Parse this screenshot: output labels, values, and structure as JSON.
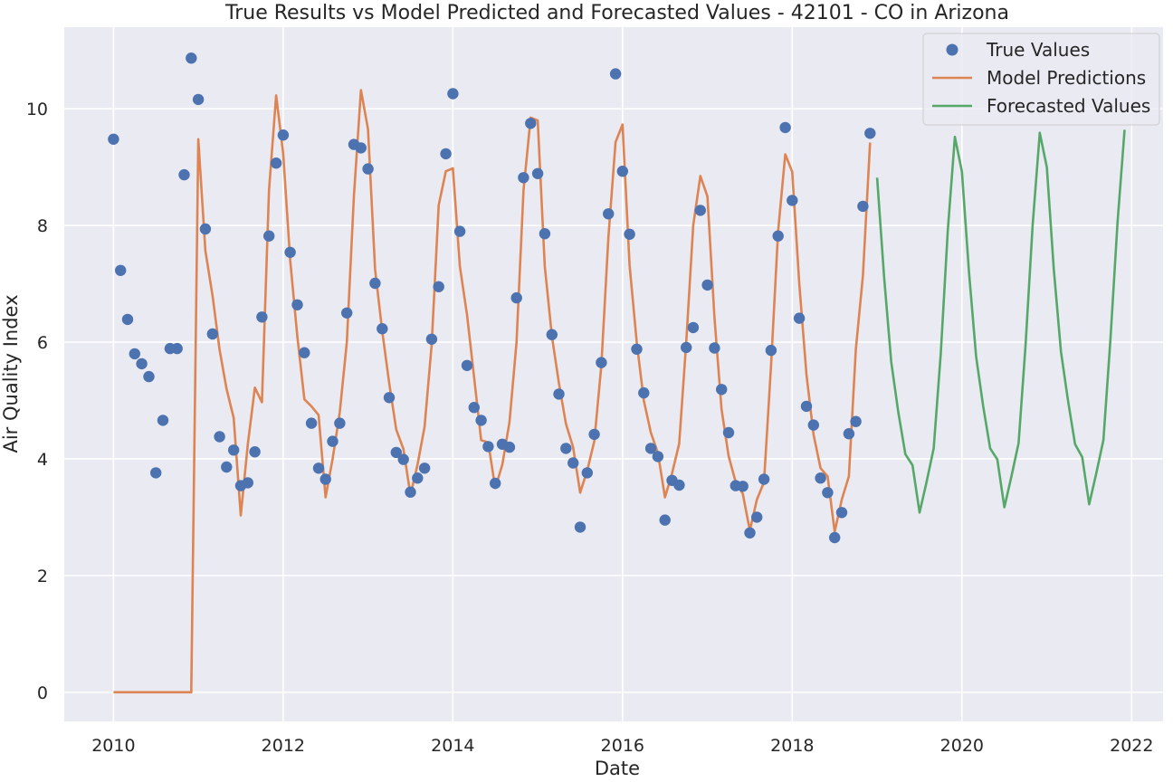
{
  "chart_data": {
    "type": "line",
    "title": "True Results vs Model Predicted and Forecasted Values - 42101 - CO in Arizona",
    "xlabel": "Date",
    "ylabel": "Air Quality Index",
    "xlim": [
      2009.42,
      2022.37
    ],
    "ylim": [
      -0.5,
      11.4
    ],
    "xticks": [
      2010,
      2012,
      2014,
      2016,
      2018,
      2020,
      2022
    ],
    "yticks": [
      0,
      2,
      4,
      6,
      8,
      10
    ],
    "grid": true,
    "legend_position": "top-right",
    "series": [
      {
        "name": "True Values",
        "kind": "scatter",
        "color": "#4c72b0",
        "x": [
          2010.0,
          2010.083,
          2010.167,
          2010.25,
          2010.333,
          2010.417,
          2010.5,
          2010.583,
          2010.667,
          2010.75,
          2010.833,
          2010.917,
          2011.0,
          2011.083,
          2011.167,
          2011.25,
          2011.333,
          2011.417,
          2011.5,
          2011.583,
          2011.667,
          2011.75,
          2011.833,
          2011.917,
          2012.0,
          2012.083,
          2012.167,
          2012.25,
          2012.333,
          2012.417,
          2012.5,
          2012.583,
          2012.667,
          2012.75,
          2012.833,
          2012.917,
          2013.0,
          2013.083,
          2013.167,
          2013.25,
          2013.333,
          2013.417,
          2013.5,
          2013.583,
          2013.667,
          2013.75,
          2013.833,
          2013.917,
          2014.0,
          2014.083,
          2014.167,
          2014.25,
          2014.333,
          2014.417,
          2014.5,
          2014.583,
          2014.667,
          2014.75,
          2014.833,
          2014.917,
          2015.0,
          2015.083,
          2015.167,
          2015.25,
          2015.333,
          2015.417,
          2015.5,
          2015.583,
          2015.667,
          2015.75,
          2015.833,
          2015.917,
          2016.0,
          2016.083,
          2016.167,
          2016.25,
          2016.333,
          2016.417,
          2016.5,
          2016.583,
          2016.667,
          2016.75,
          2016.833,
          2016.917,
          2017.0,
          2017.083,
          2017.167,
          2017.25,
          2017.333,
          2017.417,
          2017.5,
          2017.583,
          2017.667,
          2017.75,
          2017.833,
          2017.917,
          2018.0,
          2018.083,
          2018.167,
          2018.25,
          2018.333,
          2018.417,
          2018.5,
          2018.583,
          2018.667,
          2018.75,
          2018.833,
          2018.917
        ],
        "y": [
          9.48,
          7.23,
          6.39,
          5.8,
          5.63,
          5.41,
          3.76,
          4.66,
          5.89,
          5.89,
          8.87,
          10.87,
          10.16,
          7.94,
          6.14,
          4.38,
          3.86,
          4.15,
          3.54,
          3.59,
          4.12,
          6.43,
          7.82,
          9.07,
          9.55,
          7.54,
          6.64,
          5.82,
          4.61,
          3.84,
          3.65,
          4.3,
          4.61,
          6.5,
          9.39,
          9.33,
          8.97,
          7.01,
          6.23,
          5.05,
          4.11,
          3.99,
          3.43,
          3.67,
          3.84,
          6.05,
          6.95,
          9.23,
          10.26,
          7.9,
          5.6,
          4.88,
          4.66,
          4.21,
          3.58,
          4.25,
          4.2,
          6.76,
          8.82,
          9.75,
          8.89,
          7.86,
          6.13,
          5.11,
          4.18,
          3.93,
          2.83,
          3.76,
          4.42,
          5.65,
          8.2,
          10.6,
          8.93,
          7.85,
          5.88,
          5.13,
          4.18,
          4.04,
          2.95,
          3.63,
          3.55,
          5.91,
          6.25,
          8.26,
          6.98,
          5.9,
          5.19,
          4.45,
          3.54,
          3.53,
          2.73,
          3.0,
          3.65,
          5.86,
          7.82,
          9.68,
          8.43,
          6.41,
          4.9,
          4.58,
          3.67,
          3.42,
          2.65,
          3.08,
          4.43,
          4.64,
          8.33,
          9.58
        ]
      },
      {
        "name": "Model Predictions",
        "kind": "line",
        "color": "#dd8452",
        "x": [
          2010.0,
          2010.083,
          2010.167,
          2010.25,
          2010.333,
          2010.417,
          2010.5,
          2010.583,
          2010.667,
          2010.75,
          2010.833,
          2010.917,
          2011.0,
          2011.083,
          2011.167,
          2011.25,
          2011.333,
          2011.417,
          2011.5,
          2011.583,
          2011.667,
          2011.75,
          2011.833,
          2011.917,
          2012.0,
          2012.083,
          2012.167,
          2012.25,
          2012.333,
          2012.417,
          2012.5,
          2012.583,
          2012.667,
          2012.75,
          2012.833,
          2012.917,
          2013.0,
          2013.083,
          2013.167,
          2013.25,
          2013.333,
          2013.417,
          2013.5,
          2013.583,
          2013.667,
          2013.75,
          2013.833,
          2013.917,
          2014.0,
          2014.083,
          2014.167,
          2014.25,
          2014.333,
          2014.417,
          2014.5,
          2014.583,
          2014.667,
          2014.75,
          2014.833,
          2014.917,
          2015.0,
          2015.083,
          2015.167,
          2015.25,
          2015.333,
          2015.417,
          2015.5,
          2015.583,
          2015.667,
          2015.75,
          2015.833,
          2015.917,
          2016.0,
          2016.083,
          2016.167,
          2016.25,
          2016.333,
          2016.417,
          2016.5,
          2016.583,
          2016.667,
          2016.75,
          2016.833,
          2016.917,
          2017.0,
          2017.083,
          2017.167,
          2017.25,
          2017.333,
          2017.417,
          2017.5,
          2017.583,
          2017.667,
          2017.75,
          2017.833,
          2017.917,
          2018.0,
          2018.083,
          2018.167,
          2018.25,
          2018.333,
          2018.417,
          2018.5,
          2018.583,
          2018.667,
          2018.75,
          2018.833,
          2018.917
        ],
        "y": [
          0,
          0,
          0,
          0,
          0,
          0,
          0,
          0,
          0,
          0,
          0,
          0,
          9.48,
          7.57,
          6.8,
          5.87,
          5.2,
          4.7,
          3.03,
          4.25,
          5.22,
          4.97,
          8.6,
          10.23,
          9.23,
          7.41,
          6.1,
          5.02,
          4.9,
          4.75,
          3.34,
          4.0,
          4.8,
          6.0,
          8.5,
          10.32,
          9.65,
          7.25,
          6.19,
          5.3,
          4.5,
          4.17,
          3.38,
          3.9,
          4.55,
          5.95,
          8.35,
          8.93,
          8.98,
          7.3,
          6.47,
          5.4,
          4.32,
          4.28,
          3.5,
          3.9,
          4.63,
          6.0,
          8.6,
          9.85,
          9.8,
          7.3,
          6.1,
          5.3,
          4.6,
          4.2,
          3.42,
          3.8,
          4.3,
          5.6,
          7.8,
          9.43,
          9.73,
          7.32,
          6.0,
          5.0,
          4.45,
          4.1,
          3.34,
          3.75,
          4.26,
          6.0,
          8.0,
          8.85,
          8.5,
          6.42,
          4.85,
          4.05,
          3.6,
          3.4,
          2.77,
          3.3,
          3.6,
          5.6,
          7.9,
          9.22,
          8.92,
          7.0,
          5.45,
          4.42,
          3.84,
          3.7,
          2.75,
          3.3,
          3.7,
          5.88,
          7.14,
          9.42
        ]
      },
      {
        "name": "Forecasted Values",
        "kind": "line",
        "color": "#55a868",
        "x": [
          2019.0,
          2019.083,
          2019.167,
          2019.25,
          2019.333,
          2019.417,
          2019.5,
          2019.583,
          2019.667,
          2019.75,
          2019.833,
          2019.917,
          2020.0,
          2020.083,
          2020.167,
          2020.25,
          2020.333,
          2020.417,
          2020.5,
          2020.583,
          2020.667,
          2020.75,
          2020.833,
          2020.917,
          2021.0,
          2021.083,
          2021.167,
          2021.25,
          2021.333,
          2021.417,
          2021.5,
          2021.583,
          2021.667,
          2021.75,
          2021.833,
          2021.917
        ],
        "y": [
          8.82,
          7.1,
          5.66,
          4.8,
          4.08,
          3.89,
          3.08,
          3.6,
          4.18,
          5.8,
          7.92,
          9.52,
          8.92,
          7.2,
          5.75,
          4.9,
          4.18,
          3.99,
          3.17,
          3.7,
          4.27,
          5.95,
          8.0,
          9.59,
          9.0,
          7.25,
          5.84,
          5.0,
          4.25,
          4.03,
          3.22,
          3.75,
          4.32,
          6.05,
          8.05,
          9.64
        ]
      }
    ]
  }
}
